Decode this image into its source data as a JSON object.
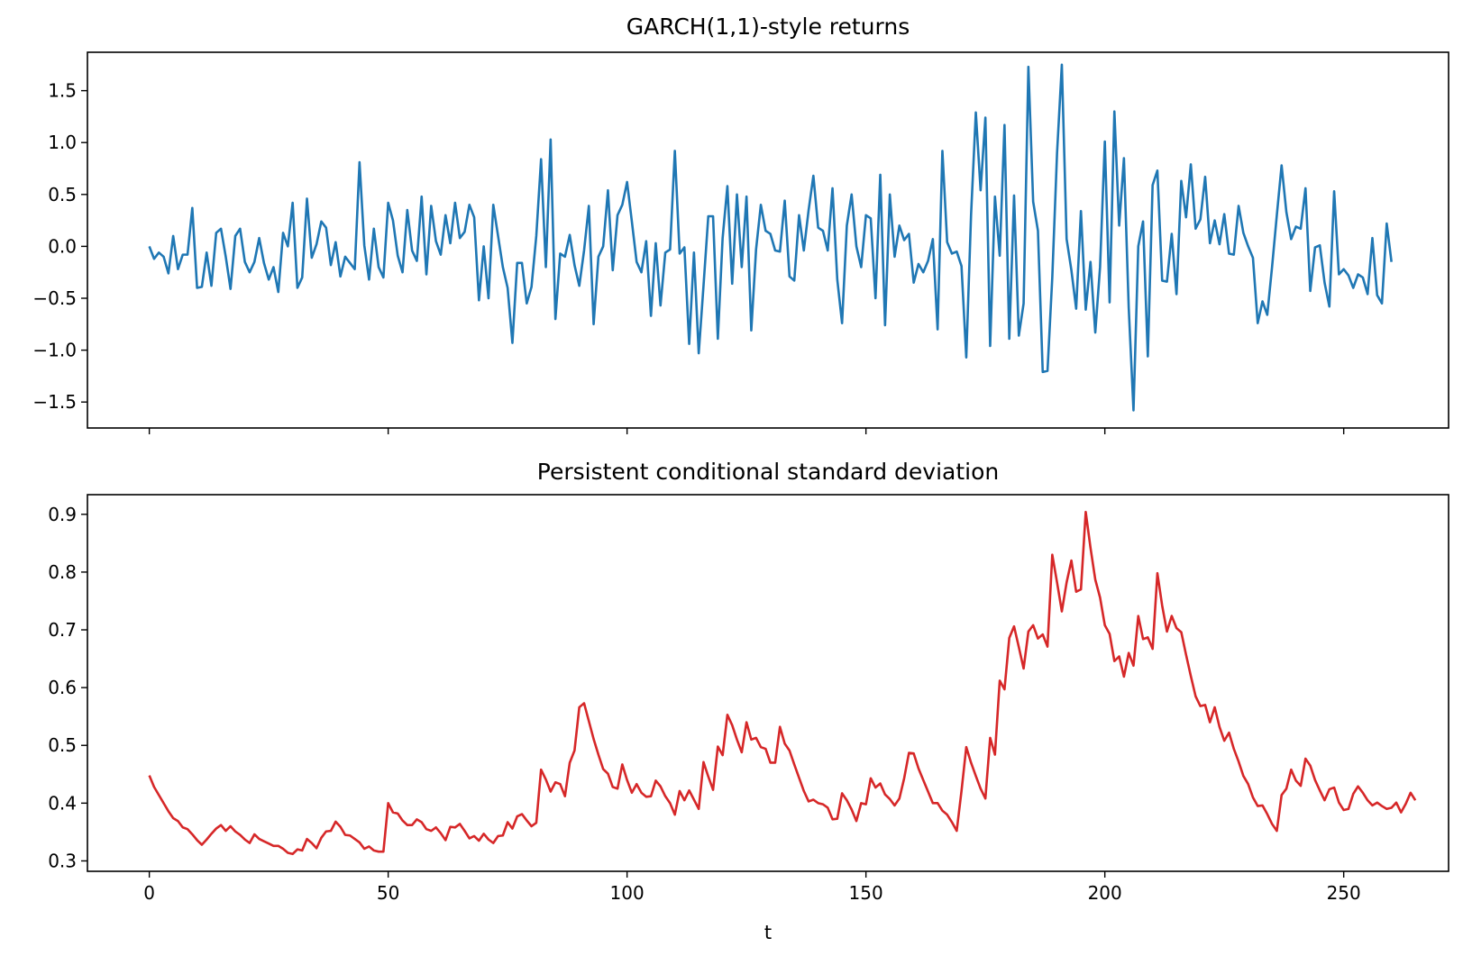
{
  "chart_data": [
    {
      "type": "line",
      "title": "GARCH(1,1)-style returns",
      "xlabel": "",
      "ylabel": "",
      "xlim": [
        -12.95,
        271.95
      ],
      "ylim": [
        -1.75,
        1.87
      ],
      "xticks": [
        0,
        50,
        100,
        150,
        200,
        250
      ],
      "xtick_labels": [
        "",
        "",
        "",
        "",
        "",
        ""
      ],
      "yticks": [
        -1.5,
        -1.0,
        -0.5,
        0.0,
        0.5,
        1.0,
        1.5
      ],
      "ytick_labels": [
        "−1.5",
        "−1.0",
        "−0.5",
        "0.0",
        "0.5",
        "1.0",
        "1.5"
      ],
      "grid": false,
      "series": [
        {
          "color": "#1f77b4",
          "x_start": 0,
          "x_step": 1,
          "values": [
            0.0,
            -0.12,
            -0.06,
            -0.1,
            -0.26,
            0.1,
            -0.22,
            -0.08,
            -0.08,
            0.37,
            -0.4,
            -0.39,
            -0.06,
            -0.38,
            0.13,
            0.17,
            -0.1,
            -0.41,
            0.1,
            0.17,
            -0.15,
            -0.25,
            -0.15,
            0.08,
            -0.16,
            -0.32,
            -0.2,
            -0.44,
            0.13,
            0.0,
            0.42,
            -0.4,
            -0.3,
            0.46,
            -0.11,
            0.02,
            0.24,
            0.18,
            -0.18,
            0.04,
            -0.29,
            -0.1,
            -0.16,
            -0.22,
            0.81,
            0.01,
            -0.32,
            0.17,
            -0.2,
            -0.3,
            0.42,
            0.25,
            -0.09,
            -0.25,
            0.35,
            -0.04,
            -0.14,
            0.48,
            -0.27,
            0.39,
            0.05,
            -0.08,
            0.3,
            0.03,
            0.42,
            0.08,
            0.14,
            0.4,
            0.28,
            -0.52,
            0.0,
            -0.5,
            0.4,
            0.1,
            -0.2,
            -0.4,
            -0.93,
            -0.16,
            -0.16,
            -0.55,
            -0.39,
            0.1,
            0.84,
            -0.2,
            1.03,
            -0.7,
            -0.07,
            -0.1,
            0.11,
            -0.18,
            -0.38,
            -0.04,
            0.39,
            -0.75,
            -0.1,
            0.0,
            0.54,
            -0.23,
            0.3,
            0.4,
            0.62,
            0.24,
            -0.15,
            -0.25,
            0.05,
            -0.67,
            0.03,
            -0.57,
            -0.06,
            -0.03,
            0.92,
            -0.07,
            -0.01,
            -0.94,
            -0.06,
            -1.03,
            -0.38,
            0.29,
            0.29,
            -0.89,
            0.08,
            0.58,
            -0.36,
            0.5,
            -0.2,
            0.48,
            -0.81,
            -0.03,
            0.4,
            0.15,
            0.12,
            -0.04,
            -0.05,
            0.44,
            -0.29,
            -0.33,
            0.3,
            -0.04,
            0.35,
            0.68,
            0.18,
            0.15,
            -0.04,
            0.56,
            -0.32,
            -0.74,
            0.2,
            0.5,
            0.0,
            -0.2,
            0.3,
            0.27,
            -0.5,
            0.69,
            -0.76,
            0.5,
            -0.1,
            0.2,
            0.06,
            0.12,
            -0.35,
            -0.17,
            -0.25,
            -0.14,
            0.07,
            -0.8,
            0.92,
            0.04,
            -0.07,
            -0.05,
            -0.19,
            -1.07,
            0.3,
            1.29,
            0.54,
            1.24,
            -0.96,
            0.48,
            -0.09,
            1.17,
            -0.89,
            0.49,
            -0.86,
            -0.55,
            1.73,
            0.43,
            0.15,
            -1.21,
            -1.2,
            -0.3,
            0.9,
            1.75,
            0.07,
            -0.23,
            -0.6,
            0.34,
            -0.61,
            -0.15,
            -0.83,
            -0.2,
            1.01,
            -0.54,
            1.3,
            0.2,
            0.85,
            -0.59,
            -1.58,
            0.0,
            0.24,
            -1.06,
            0.59,
            0.73,
            -0.33,
            -0.34,
            0.12,
            -0.46,
            0.63,
            0.28,
            0.79,
            0.17,
            0.26,
            0.67,
            0.03,
            0.25,
            0.02,
            0.31,
            -0.07,
            -0.08,
            0.39,
            0.13,
            0.0,
            -0.11,
            -0.74,
            -0.53,
            -0.66,
            -0.2,
            0.3,
            0.78,
            0.33,
            0.07,
            0.19,
            0.17,
            0.56,
            -0.43,
            -0.01,
            0.01,
            -0.35,
            -0.58,
            0.53,
            -0.27,
            -0.22,
            -0.28,
            -0.4,
            -0.27,
            -0.3,
            -0.46,
            0.08,
            -0.47,
            -0.55,
            0.22,
            -0.15
          ]
        }
      ]
    },
    {
      "type": "line",
      "title": "Persistent conditional standard deviation",
      "xlabel": "t",
      "ylabel": "",
      "xlim": [
        -12.95,
        271.95
      ],
      "ylim": [
        0.282,
        0.934
      ],
      "xticks": [
        0,
        50,
        100,
        150,
        200,
        250
      ],
      "xtick_labels": [
        "0",
        "50",
        "100",
        "150",
        "200",
        "250"
      ],
      "yticks": [
        0.3,
        0.4,
        0.5,
        0.6,
        0.7,
        0.8,
        0.9
      ],
      "ytick_labels": [
        "0.3",
        "0.4",
        "0.5",
        "0.6",
        "0.7",
        "0.8",
        "0.9"
      ],
      "grid": false,
      "series": [
        {
          "color": "#d62728",
          "x_start": 0,
          "x_step": 1,
          "values": [
            0.448,
            0.428,
            0.414,
            0.4,
            0.386,
            0.374,
            0.369,
            0.358,
            0.355,
            0.346,
            0.336,
            0.328,
            0.337,
            0.347,
            0.356,
            0.362,
            0.352,
            0.36,
            0.351,
            0.345,
            0.337,
            0.331,
            0.346,
            0.338,
            0.334,
            0.33,
            0.326,
            0.326,
            0.321,
            0.314,
            0.312,
            0.32,
            0.318,
            0.338,
            0.331,
            0.322,
            0.34,
            0.351,
            0.352,
            0.368,
            0.359,
            0.345,
            0.344,
            0.338,
            0.332,
            0.321,
            0.325,
            0.318,
            0.316,
            0.316,
            0.4,
            0.384,
            0.382,
            0.37,
            0.362,
            0.362,
            0.372,
            0.367,
            0.355,
            0.352,
            0.358,
            0.348,
            0.336,
            0.359,
            0.358,
            0.364,
            0.352,
            0.339,
            0.343,
            0.335,
            0.347,
            0.337,
            0.331,
            0.343,
            0.344,
            0.367,
            0.356,
            0.377,
            0.381,
            0.37,
            0.36,
            0.366,
            0.458,
            0.441,
            0.42,
            0.436,
            0.433,
            0.412,
            0.47,
            0.491,
            0.566,
            0.573,
            0.542,
            0.511,
            0.484,
            0.459,
            0.451,
            0.428,
            0.425,
            0.467,
            0.44,
            0.418,
            0.433,
            0.418,
            0.411,
            0.412,
            0.439,
            0.429,
            0.412,
            0.4,
            0.38,
            0.421,
            0.405,
            0.422,
            0.406,
            0.39,
            0.471,
            0.446,
            0.423,
            0.498,
            0.483,
            0.553,
            0.535,
            0.51,
            0.488,
            0.54,
            0.51,
            0.513,
            0.497,
            0.494,
            0.47,
            0.47,
            0.532,
            0.503,
            0.491,
            0.467,
            0.444,
            0.421,
            0.403,
            0.406,
            0.4,
            0.398,
            0.392,
            0.372,
            0.373,
            0.417,
            0.405,
            0.389,
            0.369,
            0.4,
            0.398,
            0.443,
            0.427,
            0.434,
            0.415,
            0.407,
            0.396,
            0.408,
            0.443,
            0.487,
            0.486,
            0.46,
            0.44,
            0.42,
            0.4,
            0.4,
            0.387,
            0.38,
            0.367,
            0.352,
            0.421,
            0.497,
            0.47,
            0.447,
            0.425,
            0.408,
            0.513,
            0.484,
            0.612,
            0.597,
            0.686,
            0.706,
            0.67,
            0.633,
            0.697,
            0.708,
            0.685,
            0.692,
            0.671,
            0.83,
            0.782,
            0.732,
            0.782,
            0.82,
            0.766,
            0.77,
            0.904,
            0.842,
            0.787,
            0.756,
            0.708,
            0.693,
            0.646,
            0.654,
            0.619,
            0.66,
            0.638,
            0.724,
            0.684,
            0.687,
            0.667,
            0.798,
            0.742,
            0.697,
            0.724,
            0.703,
            0.696,
            0.657,
            0.62,
            0.585,
            0.568,
            0.57,
            0.54,
            0.566,
            0.532,
            0.508,
            0.522,
            0.494,
            0.472,
            0.447,
            0.433,
            0.41,
            0.395,
            0.396,
            0.381,
            0.364,
            0.352,
            0.414,
            0.425,
            0.458,
            0.439,
            0.43,
            0.477,
            0.465,
            0.44,
            0.422,
            0.405,
            0.424,
            0.427,
            0.401,
            0.388,
            0.39,
            0.416,
            0.429,
            0.418,
            0.405,
            0.396,
            0.401,
            0.395,
            0.39,
            0.392,
            0.401,
            0.384,
            0.399,
            0.418,
            0.405
          ]
        }
      ]
    }
  ]
}
